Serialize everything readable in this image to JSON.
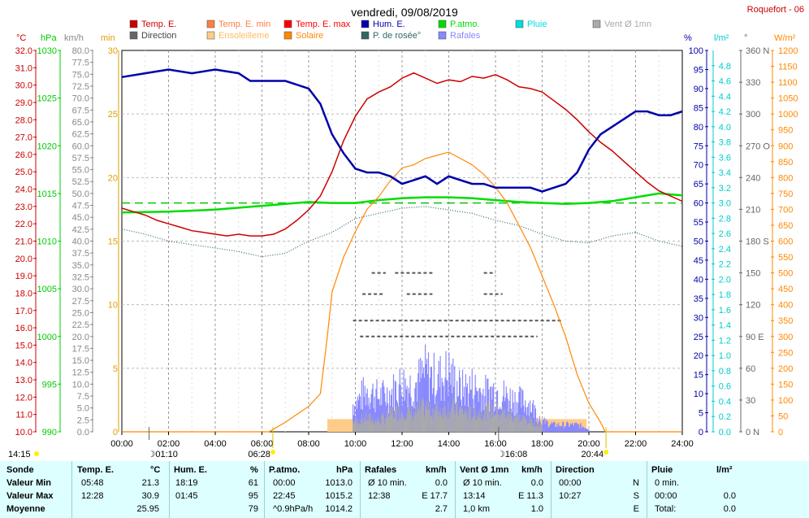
{
  "header": {
    "title": "vendredi, 09/08/2019",
    "station": "Roquefort - 06"
  },
  "units": {
    "temp": "°C",
    "press": "hPa",
    "wind": "km/h",
    "sun": "min",
    "hum": "%",
    "rain": "l/m²",
    "dir": "°",
    "solar": "W/m²"
  },
  "legend": [
    {
      "label": "Temp. E.",
      "color": "#cc0000"
    },
    {
      "label": "Temp. E. min",
      "color": "#ff7f3f"
    },
    {
      "label": "Temp. E. max",
      "color": "#ff0000"
    },
    {
      "label": "Hum. E.",
      "color": "#0000aa"
    },
    {
      "label": "P.atmo.",
      "color": "#00dd00"
    },
    {
      "label": "Pluie",
      "color": "#00dddd"
    },
    {
      "label": "Vent Ø 1mn",
      "color": "#aaaaaa"
    },
    {
      "label": "Direction",
      "color": "#666666"
    },
    {
      "label": "Ensoleilleme",
      "color": "#ffcc88"
    },
    {
      "label": "Solaire",
      "color": "#ff8800"
    },
    {
      "label": "P. de rosée°",
      "color": "#336666"
    },
    {
      "label": "Rafales",
      "color": "#8888ff"
    }
  ],
  "colors": {
    "temp": "#cc0000",
    "press": "#00cc00",
    "wind": "#888888",
    "sun": "#e0a000",
    "hum": "#0000aa",
    "rain": "#00cccc",
    "dir": "#666666",
    "solar": "#ff8800",
    "dew": "#336666",
    "gust": "#8888ff",
    "sunband": "#ffcc88"
  },
  "footer": {
    "sunrise": "06:28",
    "sunset": "20:44",
    "moonrise": "01:10",
    "moonset": "16:08",
    "left_time": "14:15"
  },
  "chart_data": {
    "type": "line",
    "title": "vendredi, 09/08/2019",
    "x_ticks": [
      "00:00",
      "02:00",
      "04:00",
      "06:00",
      "08:00",
      "10:00",
      "12:00",
      "14:00",
      "16:00",
      "18:00",
      "20:00",
      "22:00",
      "24:00"
    ],
    "axes": {
      "temp_ticks": [
        "32.0",
        "31.0",
        "30.0",
        "29.0",
        "28.0",
        "27.0",
        "26.0",
        "25.0",
        "24.0",
        "23.0",
        "22.0",
        "21.0",
        "20.0",
        "19.0",
        "18.0",
        "17.0",
        "16.0",
        "15.0",
        "14.0",
        "13.0",
        "12.0",
        "11.0",
        "10.0"
      ],
      "press_ticks": [
        "1030",
        "1025",
        "1020",
        "1015",
        "1010",
        "1005",
        "1000",
        "995",
        "990"
      ],
      "wind_ticks": [
        "80.0",
        "77.5",
        "75.0",
        "72.5",
        "70.0",
        "67.5",
        "65.0",
        "62.5",
        "60.0",
        "57.5",
        "55.0",
        "52.5",
        "50.0",
        "47.5",
        "45.0",
        "42.5",
        "40.0",
        "37.5",
        "35.0",
        "32.5",
        "30.0",
        "27.5",
        "25.0",
        "22.5",
        "20.0",
        "17.5",
        "15.0",
        "12.5",
        "10.0",
        "7.5",
        "5.0",
        "2.5",
        "0.0"
      ],
      "sun_ticks": [
        "30",
        "25",
        "20",
        "15",
        "10",
        "5",
        "0"
      ],
      "hum_ticks": [
        "100",
        "95",
        "90",
        "85",
        "80",
        "75",
        "70",
        "65",
        "60",
        "55",
        "50",
        "45",
        "40",
        "35",
        "30",
        "25",
        "20",
        "15",
        "10",
        "5",
        "0"
      ],
      "rain_ticks": [
        "4.8",
        "4.6",
        "4.4",
        "4.2",
        "4.0",
        "3.8",
        "3.6",
        "3.4",
        "3.2",
        "3.0",
        "2.8",
        "2.6",
        "2.4",
        "2.2",
        "2.0",
        "1.8",
        "1.6",
        "1.4",
        "1.2",
        "1.0",
        "0.8",
        "0.6",
        "0.4",
        "0.2",
        "0.0"
      ],
      "dir_ticks": [
        {
          "v": "360 N",
          "val": 360
        },
        {
          "v": "330",
          "val": 330
        },
        {
          "v": "300",
          "val": 300
        },
        {
          "v": "270 O",
          "val": 270
        },
        {
          "v": "240",
          "val": 240
        },
        {
          "v": "210",
          "val": 210
        },
        {
          "v": "180 S",
          "val": 180
        },
        {
          "v": "150",
          "val": 150
        },
        {
          "v": "120",
          "val": 120
        },
        {
          "v": "90 E",
          "val": 90
        },
        {
          "v": "60",
          "val": 60
        },
        {
          "v": "30",
          "val": 30
        },
        {
          "v": "0 N",
          "val": 0
        }
      ],
      "solar_ticks": [
        "1200",
        "1150",
        "1100",
        "1050",
        "1000",
        "950",
        "900",
        "850",
        "800",
        "750",
        "700",
        "650",
        "600",
        "550",
        "500",
        "450",
        "400",
        "350",
        "300",
        "250",
        "200",
        "150",
        "100",
        "50",
        "0"
      ]
    },
    "series": [
      {
        "name": "Temp. E.",
        "unit": "°C",
        "x": [
          0,
          0.5,
          1,
          1.5,
          2,
          2.5,
          3,
          3.5,
          4,
          4.5,
          5,
          5.5,
          6,
          6.5,
          7,
          7.5,
          8,
          8.5,
          9,
          9.5,
          10,
          10.5,
          11,
          11.5,
          12,
          12.5,
          13,
          13.5,
          14,
          14.5,
          15,
          15.5,
          16,
          16.5,
          17,
          17.5,
          18,
          18.5,
          19,
          19.5,
          20,
          20.5,
          21,
          21.5,
          22,
          22.5,
          23,
          23.5,
          24
        ],
        "values": [
          22.9,
          22.7,
          22.5,
          22.2,
          22.0,
          21.8,
          21.6,
          21.5,
          21.4,
          21.3,
          21.4,
          21.3,
          21.3,
          21.4,
          21.7,
          22.2,
          22.8,
          23.6,
          25.0,
          26.8,
          28.2,
          29.2,
          29.6,
          29.9,
          30.4,
          30.7,
          30.4,
          30.1,
          30.3,
          30.2,
          30.5,
          30.4,
          30.6,
          30.3,
          29.9,
          29.8,
          29.6,
          29.1,
          28.6,
          28.0,
          27.3,
          26.7,
          26.2,
          25.6,
          25.0,
          24.4,
          23.9,
          23.6,
          23.3
        ]
      },
      {
        "name": "Hum. E.",
        "unit": "%",
        "x": [
          0,
          1,
          2,
          3,
          4,
          5,
          5.5,
          6,
          7,
          7.5,
          8,
          8.5,
          9,
          9.5,
          10,
          10.5,
          11,
          11.5,
          12,
          12.5,
          13,
          13.5,
          14,
          14.5,
          15,
          15.5,
          16,
          16.5,
          17,
          17.5,
          18,
          18.5,
          19,
          19.5,
          20,
          20.5,
          21,
          21.5,
          22,
          22.5,
          23,
          23.5,
          24
        ],
        "values": [
          93,
          94,
          95,
          94,
          95,
          94,
          92,
          92,
          92,
          91,
          90,
          86,
          78,
          73,
          69,
          68,
          68,
          67,
          65,
          66,
          67,
          65,
          67,
          66,
          65,
          65,
          64,
          64,
          64,
          64,
          63,
          64,
          65,
          68,
          74,
          78,
          80,
          82,
          84,
          84,
          83,
          83,
          84
        ]
      },
      {
        "name": "P.atmo.",
        "unit": "hPa",
        "x": [
          0,
          2,
          4,
          6,
          8,
          9,
          10,
          11,
          12,
          13,
          14,
          15,
          16,
          17,
          18,
          19,
          20,
          21,
          22,
          23,
          24
        ],
        "values": [
          1013.0,
          1013.1,
          1013.3,
          1013.7,
          1014.1,
          1014.0,
          1014.0,
          1014.3,
          1014.5,
          1014.6,
          1014.6,
          1014.5,
          1014.3,
          1014.1,
          1014.0,
          1013.9,
          1014.0,
          1014.2,
          1014.6,
          1015.0,
          1014.8
        ]
      },
      {
        "name": "P. de rosée°",
        "unit": "°C",
        "x": [
          0,
          1,
          2,
          3,
          4,
          5,
          6,
          7,
          8,
          9,
          10,
          11,
          12,
          13,
          14,
          15,
          16,
          17,
          18,
          19,
          20,
          21,
          22,
          23,
          24
        ],
        "values": [
          21.7,
          21.4,
          21.0,
          20.8,
          20.6,
          20.4,
          20.1,
          20.3,
          21.0,
          21.5,
          22.3,
          22.6,
          22.9,
          23.0,
          22.8,
          22.6,
          22.2,
          21.9,
          21.4,
          21.0,
          20.9,
          21.3,
          21.5,
          21.0,
          20.7
        ]
      },
      {
        "name": "Solaire",
        "unit": "W/m²",
        "x": [
          0,
          6.3,
          7,
          8,
          8.5,
          8.8,
          9,
          9.5,
          10,
          10.5,
          11,
          11.5,
          12,
          12.5,
          13,
          13.5,
          14,
          14.5,
          15,
          15.5,
          16,
          16.5,
          17,
          17.5,
          18,
          18.5,
          19,
          19.5,
          20,
          20.5,
          20.7,
          24
        ],
        "values": [
          0,
          0,
          30,
          80,
          120,
          300,
          440,
          550,
          630,
          700,
          740,
          790,
          830,
          840,
          860,
          870,
          880,
          860,
          840,
          810,
          770,
          720,
          650,
          580,
          490,
          400,
          300,
          180,
          90,
          30,
          0,
          0
        ]
      },
      {
        "name": "Vent Ø 1mn",
        "unit": "km/h",
        "x": [
          10,
          10.5,
          11,
          11.5,
          12,
          12.5,
          13,
          13.5,
          14,
          14.5,
          15,
          15.5,
          16,
          16.5,
          17,
          17.5,
          18
        ],
        "values": [
          3,
          4,
          3,
          5,
          6,
          5,
          7,
          6,
          7,
          6,
          5,
          6,
          6,
          5,
          4,
          3,
          2
        ]
      },
      {
        "name": "Rafales",
        "unit": "km/h",
        "x": [
          10,
          10.5,
          11,
          11.5,
          12,
          12.5,
          13,
          13.5,
          14,
          14.5,
          15,
          15.5,
          16,
          16.5,
          17,
          17.5,
          18,
          18.5,
          19,
          19.5,
          20
        ],
        "values": [
          8,
          12,
          10,
          11,
          14,
          13,
          17,
          15,
          17,
          12,
          13,
          11,
          12,
          10,
          9,
          8,
          3,
          2,
          2,
          2,
          1
        ]
      }
    ],
    "direction_bands": [
      {
        "val": 150,
        "x0": 10.7,
        "x1": 11.3
      },
      {
        "val": 150,
        "x0": 11.7,
        "x1": 13.3
      },
      {
        "val": 150,
        "x0": 15.5,
        "x1": 16.0
      },
      {
        "val": 130,
        "x0": 10.3,
        "x1": 11.2
      },
      {
        "val": 130,
        "x0": 12.2,
        "x1": 13.3
      },
      {
        "val": 130,
        "x0": 15.5,
        "x1": 16.3
      },
      {
        "val": 105,
        "x0": 9.9,
        "x1": 18.9
      },
      {
        "val": 90,
        "x0": 10.2,
        "x1": 17.8
      }
    ],
    "sunshine_band": {
      "x0": 8.8,
      "x1": 19.9,
      "val": 1
    },
    "dashed_ref_press": 1014.0
  },
  "table": {
    "headers": {
      "sonde": "Sonde",
      "temp": "Temp. E.",
      "temp_u": "°C",
      "hum": "Hum. E.",
      "hum_u": "%",
      "press": "P.atmo.",
      "press_u": "hPa",
      "gust": "Rafales",
      "gust_u": "km/h",
      "wind": "Vent Ø 1mn",
      "wind_u": "km/h",
      "dir": "Direction",
      "rain": "Pluie",
      "rain_u": "l/m²"
    },
    "rows": [
      {
        "label": "Valeur Min",
        "temp_t": "05:48",
        "temp_v": "21.3",
        "hum_t": "18:19",
        "hum_v": "61",
        "press_t": "00:00",
        "press_v": "1013.0",
        "gust_t": "Ø 10 min.",
        "gust_v": "0.0",
        "wind_t": "Ø 10 min.",
        "wind_v": "0.0",
        "dir_t": "00:00",
        "dir_v": "N",
        "rain_t": "0 min.",
        "rain_v": ""
      },
      {
        "label": "Valeur Max",
        "temp_t": "12:28",
        "temp_v": "30.9",
        "hum_t": "01:45",
        "hum_v": "95",
        "press_t": "22:45",
        "press_v": "1015.2",
        "gust_t": "12:38",
        "gust_v": "E 17.7",
        "wind_t": "13:14",
        "wind_v": "E 11.3",
        "dir_t": "10:27",
        "dir_v": "S",
        "rain_t": "00:00",
        "rain_v": "0.0"
      },
      {
        "label": "Moyenne",
        "temp_t": "",
        "temp_v": "25.95",
        "hum_t": "",
        "hum_v": "79",
        "press_t": "^0.9hPa/h",
        "press_v": "1014.2",
        "gust_t": "",
        "gust_v": "2.7",
        "wind_t": "1,0 km",
        "wind_v": "1.0",
        "dir_t": "",
        "dir_v": "E",
        "rain_t": "Total:",
        "rain_v": "0.0"
      }
    ]
  }
}
